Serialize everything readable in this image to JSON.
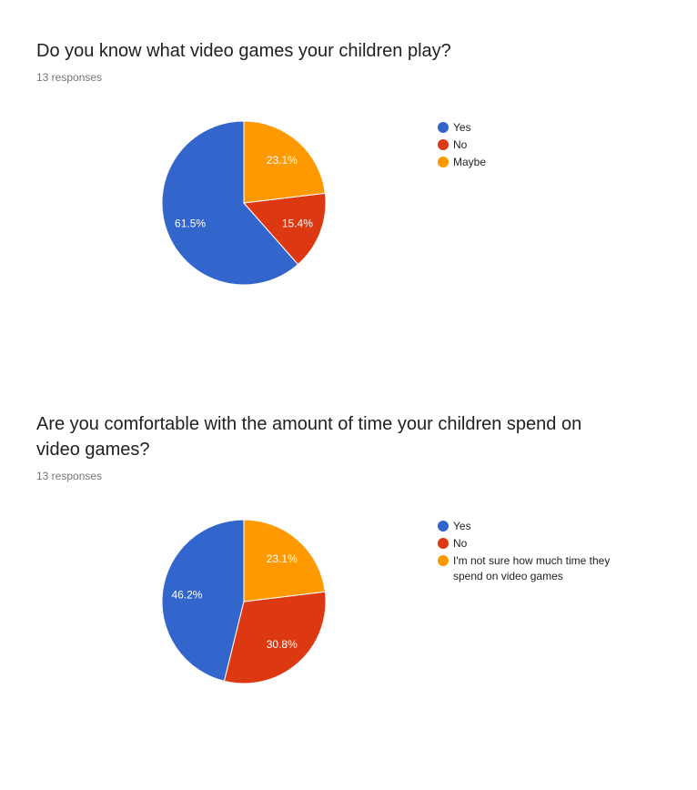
{
  "questions": [
    {
      "title": "Do you know what video games your children play?",
      "responses_label": "13 responses"
    },
    {
      "title": "Are you comfortable with the amount of time your children spend on video games?",
      "responses_label": "13 responses"
    }
  ],
  "chart_data": [
    {
      "type": "pie",
      "title": "Do you know what video games your children play?",
      "total_responses": 13,
      "start_angle_deg": 90,
      "direction": "counterclockwise",
      "legend_position": "right",
      "slices": [
        {
          "label": "Yes",
          "percent": 61.5,
          "color": "#3366cc",
          "label_text": "61.5%"
        },
        {
          "label": "No",
          "percent": 15.4,
          "color": "#dc3912",
          "label_text": "15.4%"
        },
        {
          "label": "Maybe",
          "percent": 23.1,
          "color": "#ff9900",
          "label_text": "23.1%"
        }
      ]
    },
    {
      "type": "pie",
      "title": "Are you comfortable with the amount of time your children spend on video games?",
      "total_responses": 13,
      "start_angle_deg": 90,
      "direction": "counterclockwise",
      "legend_position": "right",
      "slices": [
        {
          "label": "Yes",
          "percent": 46.2,
          "color": "#3366cc",
          "label_text": "46.2%"
        },
        {
          "label": "No",
          "percent": 30.8,
          "color": "#dc3912",
          "label_text": "30.8%"
        },
        {
          "label": "I'm not sure how much time they spend on video games",
          "percent": 23.1,
          "color": "#ff9900",
          "label_text": "23.1%"
        }
      ]
    }
  ]
}
